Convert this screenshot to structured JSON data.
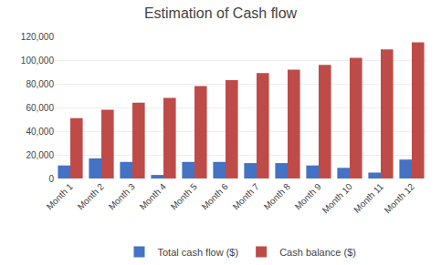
{
  "chart_data": {
    "type": "bar",
    "title": "Estimation of Cash flow",
    "categories": [
      "Month 1",
      "Month 2",
      "Month 3",
      "Month 4",
      "Month 5",
      "Month 6",
      "Month 7",
      "Month 8",
      "Month 9",
      "Month 10",
      "Month 11",
      "Month 12"
    ],
    "series": [
      {
        "name": "Total cash flow ($)",
        "color": "#4472C4",
        "values": [
          11000,
          17000,
          14000,
          3000,
          14000,
          14000,
          13000,
          13000,
          11000,
          9000,
          5000,
          16000
        ]
      },
      {
        "name": "Cash balance ($)",
        "color": "#BE4B48",
        "values": [
          51000,
          58000,
          64000,
          68000,
          78000,
          83000,
          89000,
          92000,
          96000,
          102000,
          109000,
          115000
        ]
      }
    ],
    "ylim": [
      0,
      120000
    ],
    "yticks": [
      0,
      {
        "value": 20000,
        "label": "20,000"
      },
      {
        "value": 40000,
        "label": "40,000"
      },
      {
        "value": 60000,
        "label": "60,000"
      },
      {
        "value": 80000,
        "label": "80,000"
      },
      {
        "value": 100000,
        "label": "100,000"
      },
      {
        "value": 120000,
        "label": "120,000"
      }
    ],
    "grid": true,
    "legend": "bottom"
  }
}
